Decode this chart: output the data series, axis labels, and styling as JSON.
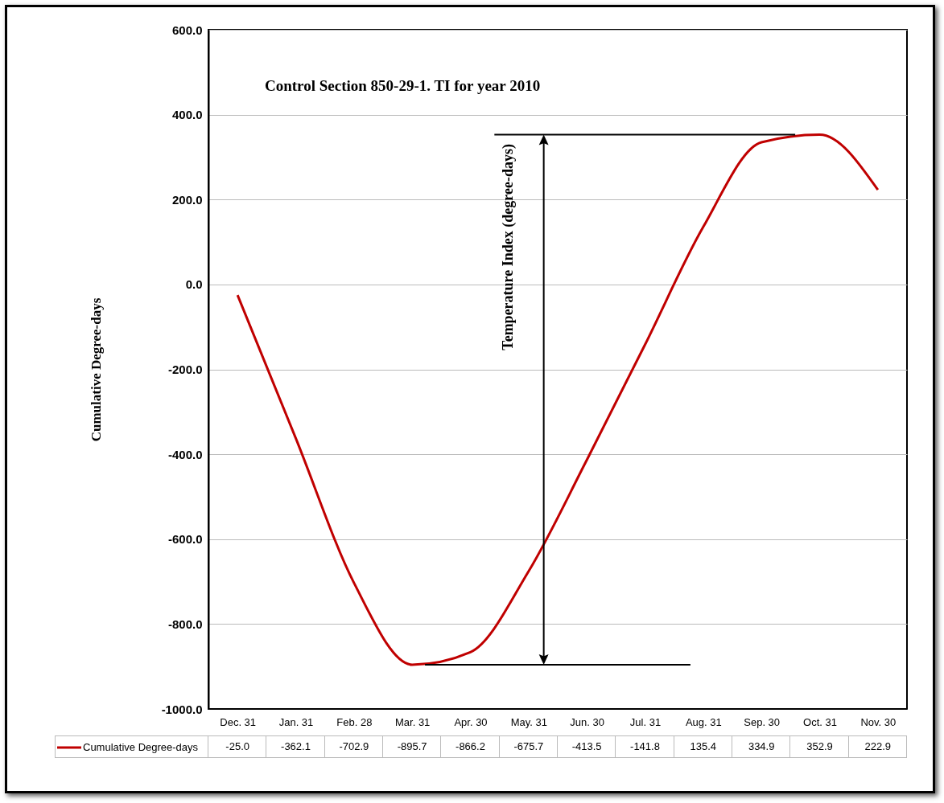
{
  "chart_data": {
    "type": "line",
    "title": "Control Section 850-29-1.  TI for year 2010",
    "ylabel": "Cumulative Degree-days",
    "categories": [
      "Dec. 31",
      "Jan. 31",
      "Feb. 28",
      "Mar. 31",
      "Apr. 30",
      "May. 31",
      "Jun. 30",
      "Jul. 31",
      "Aug. 31",
      "Sep. 30",
      "Oct. 31",
      "Nov. 30"
    ],
    "series": [
      {
        "name": "Cumulative Degree-days",
        "color": "#c00000",
        "values": [
          -25.0,
          -362.1,
          -702.9,
          -895.7,
          -866.2,
          -675.7,
          -413.5,
          -141.8,
          135.4,
          334.9,
          352.9,
          222.9
        ],
        "value_labels": [
          "-25.0",
          "-362.1",
          "-702.9",
          "-895.7",
          "-866.2",
          "-675.7",
          "-413.5",
          "-141.8",
          "135.4",
          "334.9",
          "352.9",
          "222.9"
        ]
      }
    ],
    "ylim": [
      -1000,
      600
    ],
    "yticks": [
      {
        "value": -1000,
        "label": "-1000.0"
      },
      {
        "value": -800,
        "label": "-800.0"
      },
      {
        "value": -600,
        "label": "-600.0"
      },
      {
        "value": -400,
        "label": "-400.0"
      },
      {
        "value": -200,
        "label": "-200.0"
      },
      {
        "value": 0,
        "label": "0.0"
      },
      {
        "value": 200,
        "label": "200.0"
      },
      {
        "value": 400,
        "label": "400.0"
      },
      {
        "value": 600,
        "label": "600.0"
      }
    ],
    "annotations": [
      "Temperature  Index (degree-days)"
    ],
    "grid": "y",
    "legend": "bottom",
    "marker": "none",
    "line_style": "solid"
  }
}
